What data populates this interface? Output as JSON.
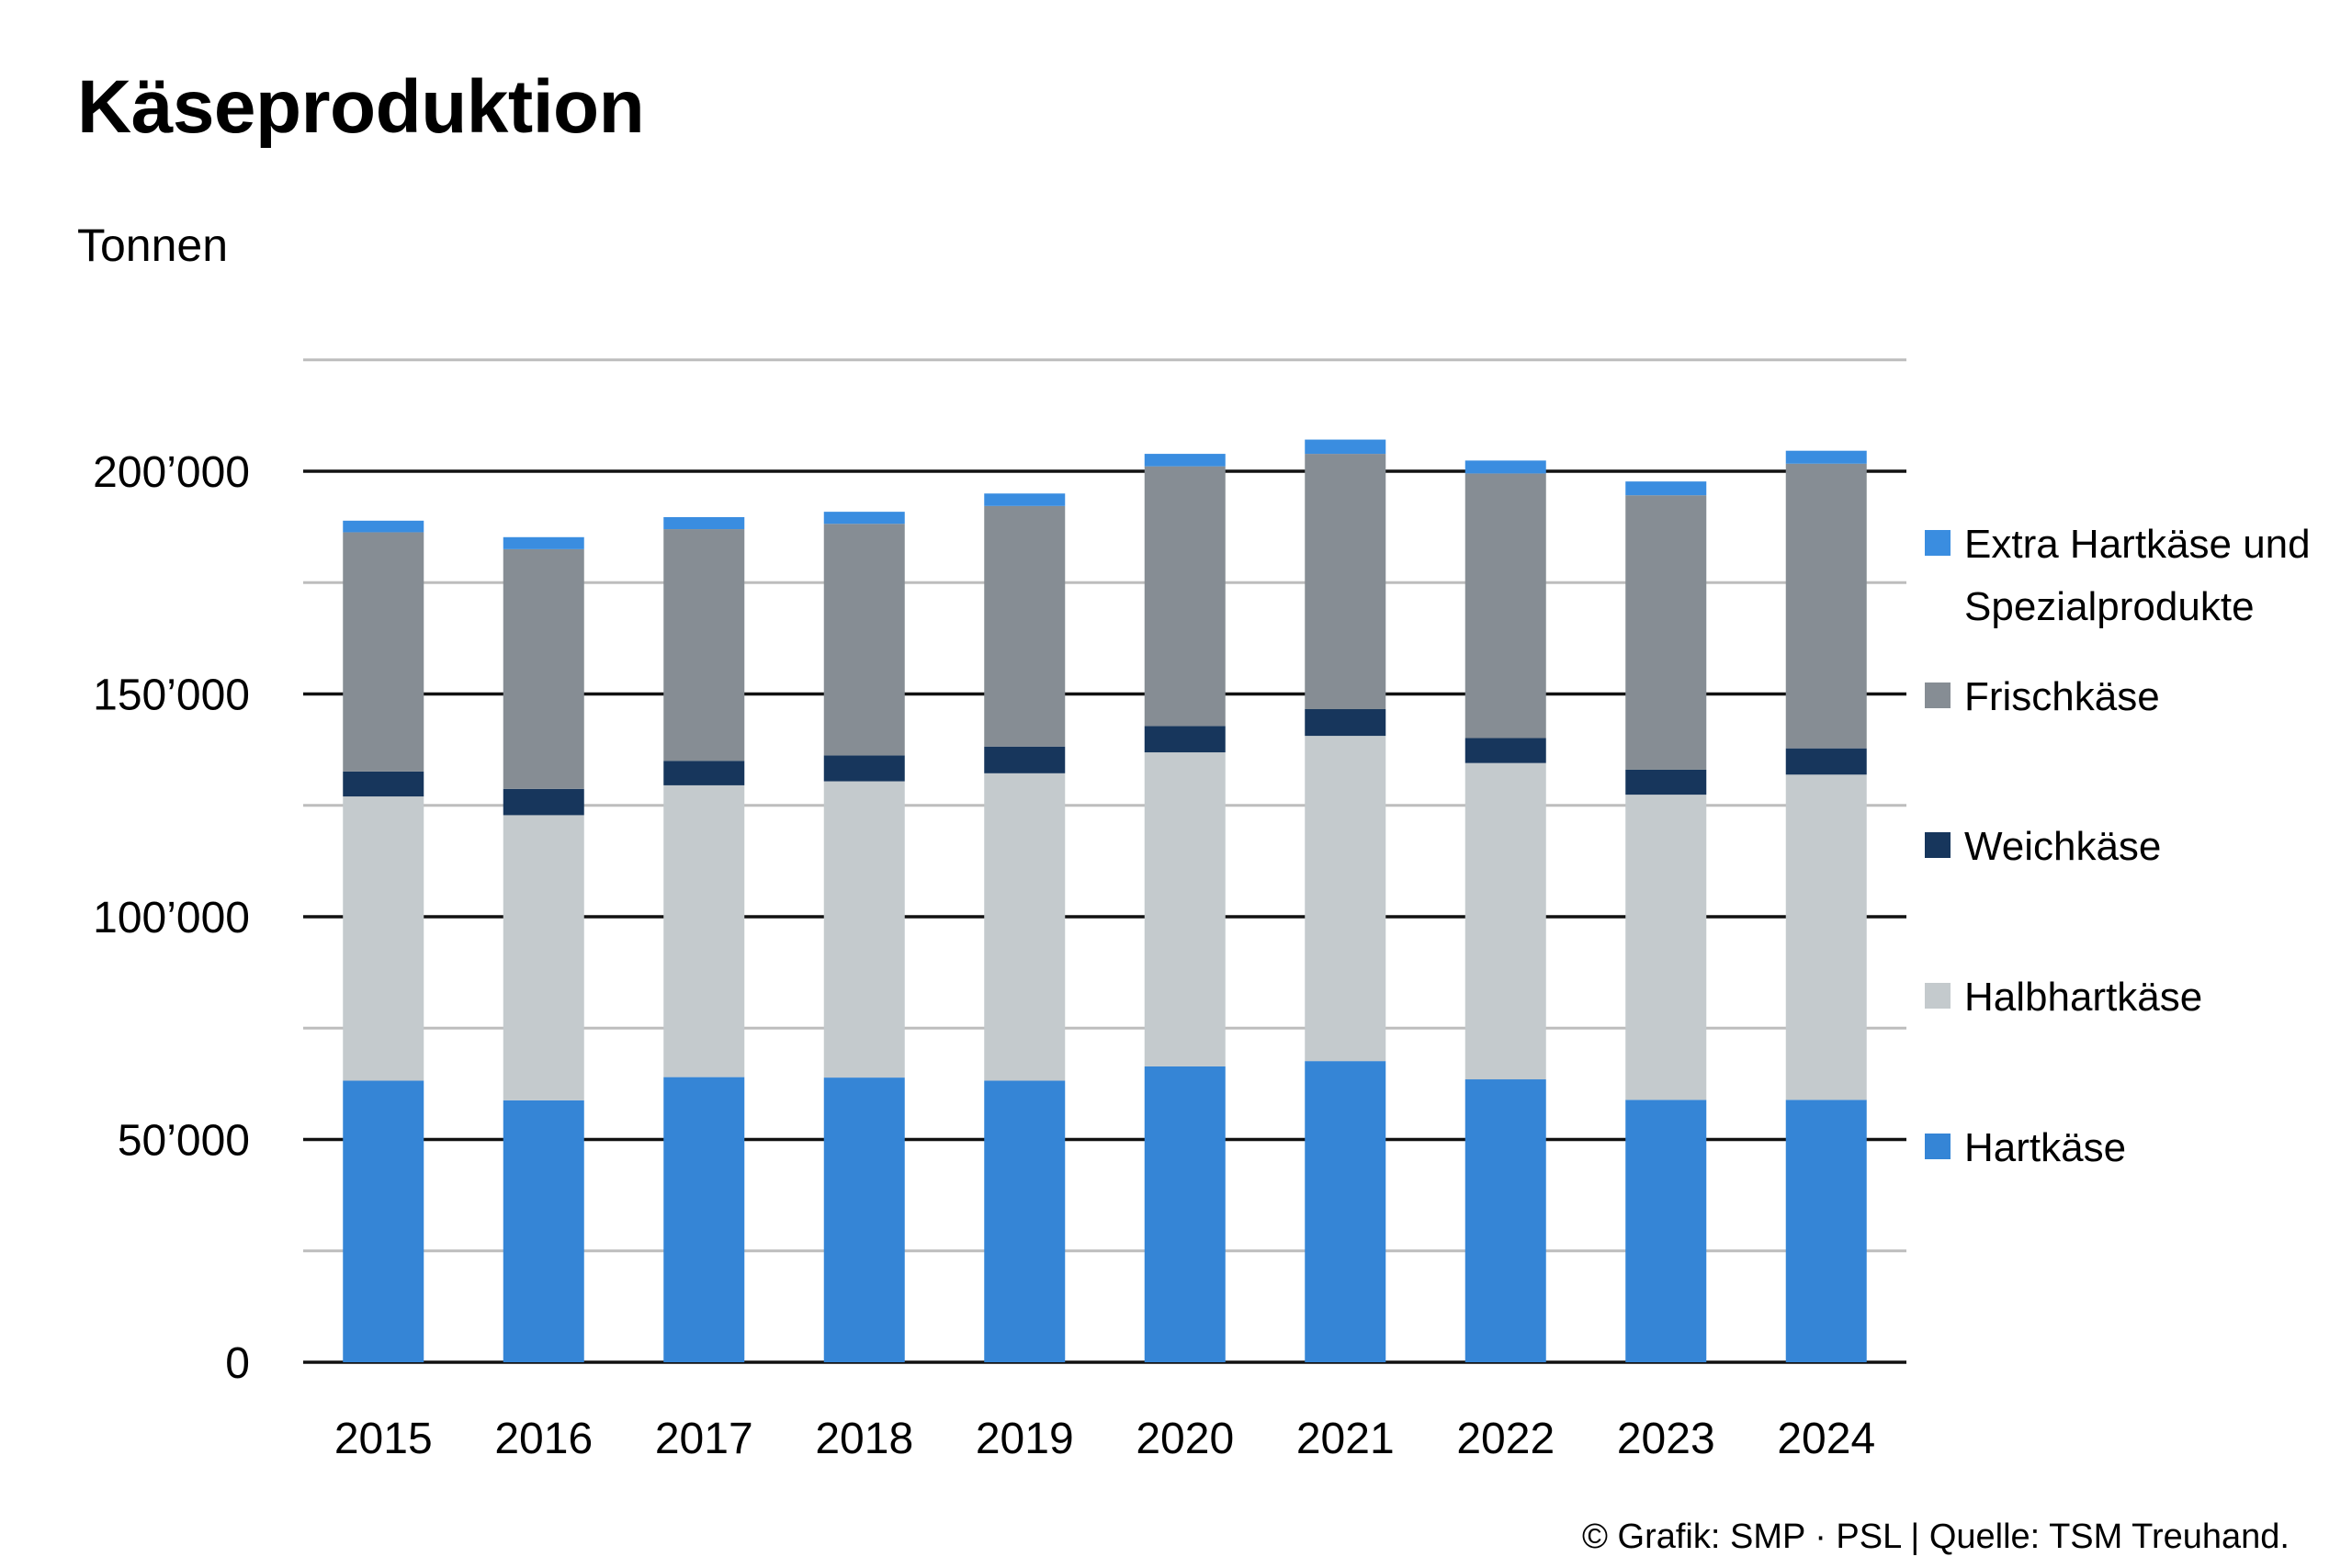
{
  "header": {
    "title": "Käseproduktion",
    "unit_label": "Tonnen"
  },
  "footer": {
    "credit": "© Grafik: SMP · PSL | Quelle: TSM Treuhand."
  },
  "chart_data": {
    "type": "bar",
    "stacked": true,
    "title": "Käseproduktion",
    "ylabel": "Tonnen",
    "xlabel": "",
    "ylim": [
      0,
      225000
    ],
    "yticks": [
      0,
      50000,
      100000,
      150000,
      200000
    ],
    "ytick_labels": [
      "0",
      "50’000",
      "100’000",
      "150’000",
      "200’000"
    ],
    "grid": true,
    "legend_position": "right",
    "categories": [
      "2015",
      "2016",
      "2017",
      "2018",
      "2019",
      "2020",
      "2021",
      "2022",
      "2023",
      "2024"
    ],
    "series": [
      {
        "name": "Hartkäse",
        "color": "#3585d6",
        "values": [
          63200,
          58800,
          64000,
          63900,
          63200,
          66400,
          67600,
          63500,
          58900,
          58900
        ]
      },
      {
        "name": "Halbhartkäse",
        "color": "#c4cacd",
        "values": [
          63800,
          64000,
          65500,
          66500,
          69000,
          70500,
          73000,
          71000,
          68500,
          73000
        ]
      },
      {
        "name": "Weichkäse",
        "color": "#17365c",
        "values": [
          5600,
          5900,
          5500,
          5800,
          6000,
          5900,
          6000,
          5600,
          5600,
          5900
        ]
      },
      {
        "name": "Frischkäse",
        "color": "#868d94",
        "values": [
          53700,
          53800,
          52000,
          52000,
          54000,
          58300,
          57300,
          59400,
          61600,
          63900
        ]
      },
      {
        "name": "Extra Hartkäse und Spezialprodukte",
        "color": "#3a8de0",
        "values": [
          2600,
          2700,
          2700,
          2700,
          2800,
          2800,
          3200,
          2900,
          3100,
          2900
        ]
      }
    ],
    "legend_order": [
      "Extra Hartkäse und Spezialprodukte",
      "Frischkäse",
      "Weichkäse",
      "Halbhartkäse",
      "Hartkäse"
    ]
  }
}
